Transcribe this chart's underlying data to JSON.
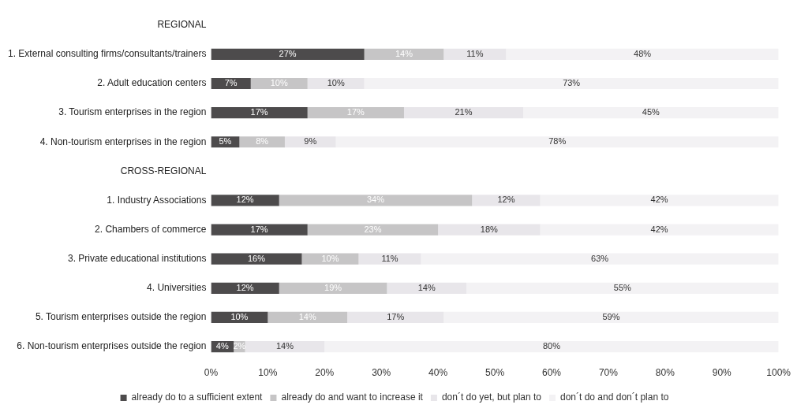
{
  "chart_data": {
    "type": "bar",
    "orientation": "horizontal",
    "stacked": true,
    "categories": [
      "REGIONAL",
      "1. External consulting firms/consultants/trainers",
      "2. Adult education centers",
      "3. Tourism enterprises in the region",
      "4. Non-tourism enterprises in the region",
      "CROSS-REGIONAL",
      "1. Industry Associations",
      "2. Chambers of commerce",
      "3. Private educational institutions",
      "4. Universities",
      "5. Tourism enterprises outside the region",
      "6. Non-tourism enterprises outside the region"
    ],
    "series": [
      {
        "name": "already do to a sufficient extent",
        "color": "#4d4b4c",
        "values": [
          null,
          27,
          7,
          17,
          5,
          null,
          12,
          17,
          16,
          12,
          10,
          4
        ],
        "value_labels": [
          null,
          "27%",
          "7%",
          "17%",
          "5%",
          null,
          "12%",
          "17%",
          "16%",
          "12%",
          "10%",
          "4%"
        ]
      },
      {
        "name": "already do and want to increase it",
        "color": "#c6c5c6",
        "values": [
          null,
          14,
          10,
          17,
          8,
          null,
          34,
          23,
          10,
          19,
          14,
          2
        ],
        "value_labels": [
          null,
          "14%",
          "10%",
          "17%",
          "8%",
          null,
          "34%",
          "23%",
          "10%",
          "19%",
          "14%",
          "2%"
        ]
      },
      {
        "name": "don´t do yet, but plan to",
        "color": "#e8e6ea",
        "values": [
          null,
          11,
          10,
          21,
          9,
          null,
          12,
          18,
          11,
          14,
          17,
          14
        ],
        "value_labels": [
          null,
          "11%",
          "10%",
          "21%",
          "9%",
          null,
          "12%",
          "18%",
          "11%",
          "14%",
          "17%",
          "14%"
        ]
      },
      {
        "name": "don´t do and don´t plan to",
        "color": "#f3f2f4",
        "values": [
          null,
          48,
          73,
          45,
          78,
          null,
          42,
          42,
          63,
          55,
          59,
          80
        ],
        "value_labels": [
          null,
          "48%",
          "73%",
          "45%",
          "78%",
          null,
          "42%",
          "42%",
          "63%",
          "55%",
          "59%",
          "80%"
        ]
      }
    ],
    "xlim": [
      0,
      100
    ],
    "xticks": [
      {
        "value": 0,
        "label": "0%"
      },
      {
        "value": 10,
        "label": "10%"
      },
      {
        "value": 20,
        "label": "20%"
      },
      {
        "value": 30,
        "label": "30%"
      },
      {
        "value": 40,
        "label": "40%"
      },
      {
        "value": 50,
        "label": "50%"
      },
      {
        "value": 60,
        "label": "60%"
      },
      {
        "value": 70,
        "label": "70%"
      },
      {
        "value": 80,
        "label": "80%"
      },
      {
        "value": 90,
        "label": "90%"
      },
      {
        "value": 100,
        "label": "100%"
      }
    ],
    "grid": false,
    "legend": "bottom",
    "marker": "square"
  }
}
